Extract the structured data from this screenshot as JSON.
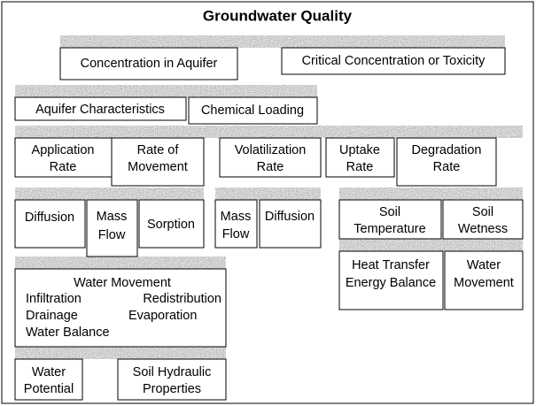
{
  "title": "Groundwater Quality",
  "nodes": [
    {
      "lines": [
        "Concentration in Aquifer"
      ]
    },
    {
      "lines": [
        "Critical Concentration or Toxicity"
      ]
    },
    {
      "lines": [
        "Aquifer Characteristics"
      ]
    },
    {
      "lines": [
        "Chemical Loading"
      ]
    },
    {
      "lines": [
        "Application",
        "Rate"
      ]
    },
    {
      "lines": [
        "Rate of",
        "Movement"
      ]
    },
    {
      "lines": [
        "Volatilization",
        "Rate"
      ]
    },
    {
      "lines": [
        "Uptake",
        "Rate"
      ]
    },
    {
      "lines": [
        "Degradation",
        "Rate"
      ]
    },
    {
      "lines": [
        "Diffusion"
      ]
    },
    {
      "lines": [
        "Mass",
        "Flow"
      ]
    },
    {
      "lines": [
        "Sorption"
      ]
    },
    {
      "lines": [
        "Mass",
        "Flow"
      ]
    },
    {
      "lines": [
        "Diffusion"
      ]
    },
    {
      "lines": [
        "Soil",
        "Temperature"
      ]
    },
    {
      "lines": [
        "Soil",
        "Wetness"
      ]
    },
    {
      "lines": [
        "Heat Transfer",
        "Energy Balance"
      ]
    },
    {
      "lines": [
        "Water",
        "Movement"
      ]
    },
    {
      "lines": [
        "Water Movement",
        "Infiltration",
        "Redistribution",
        "Drainage",
        "Evaporation",
        "Water Balance"
      ]
    },
    {
      "lines": [
        "Water",
        "Potential"
      ]
    },
    {
      "lines": [
        "Soil Hydraulic",
        "Properties"
      ]
    }
  ]
}
